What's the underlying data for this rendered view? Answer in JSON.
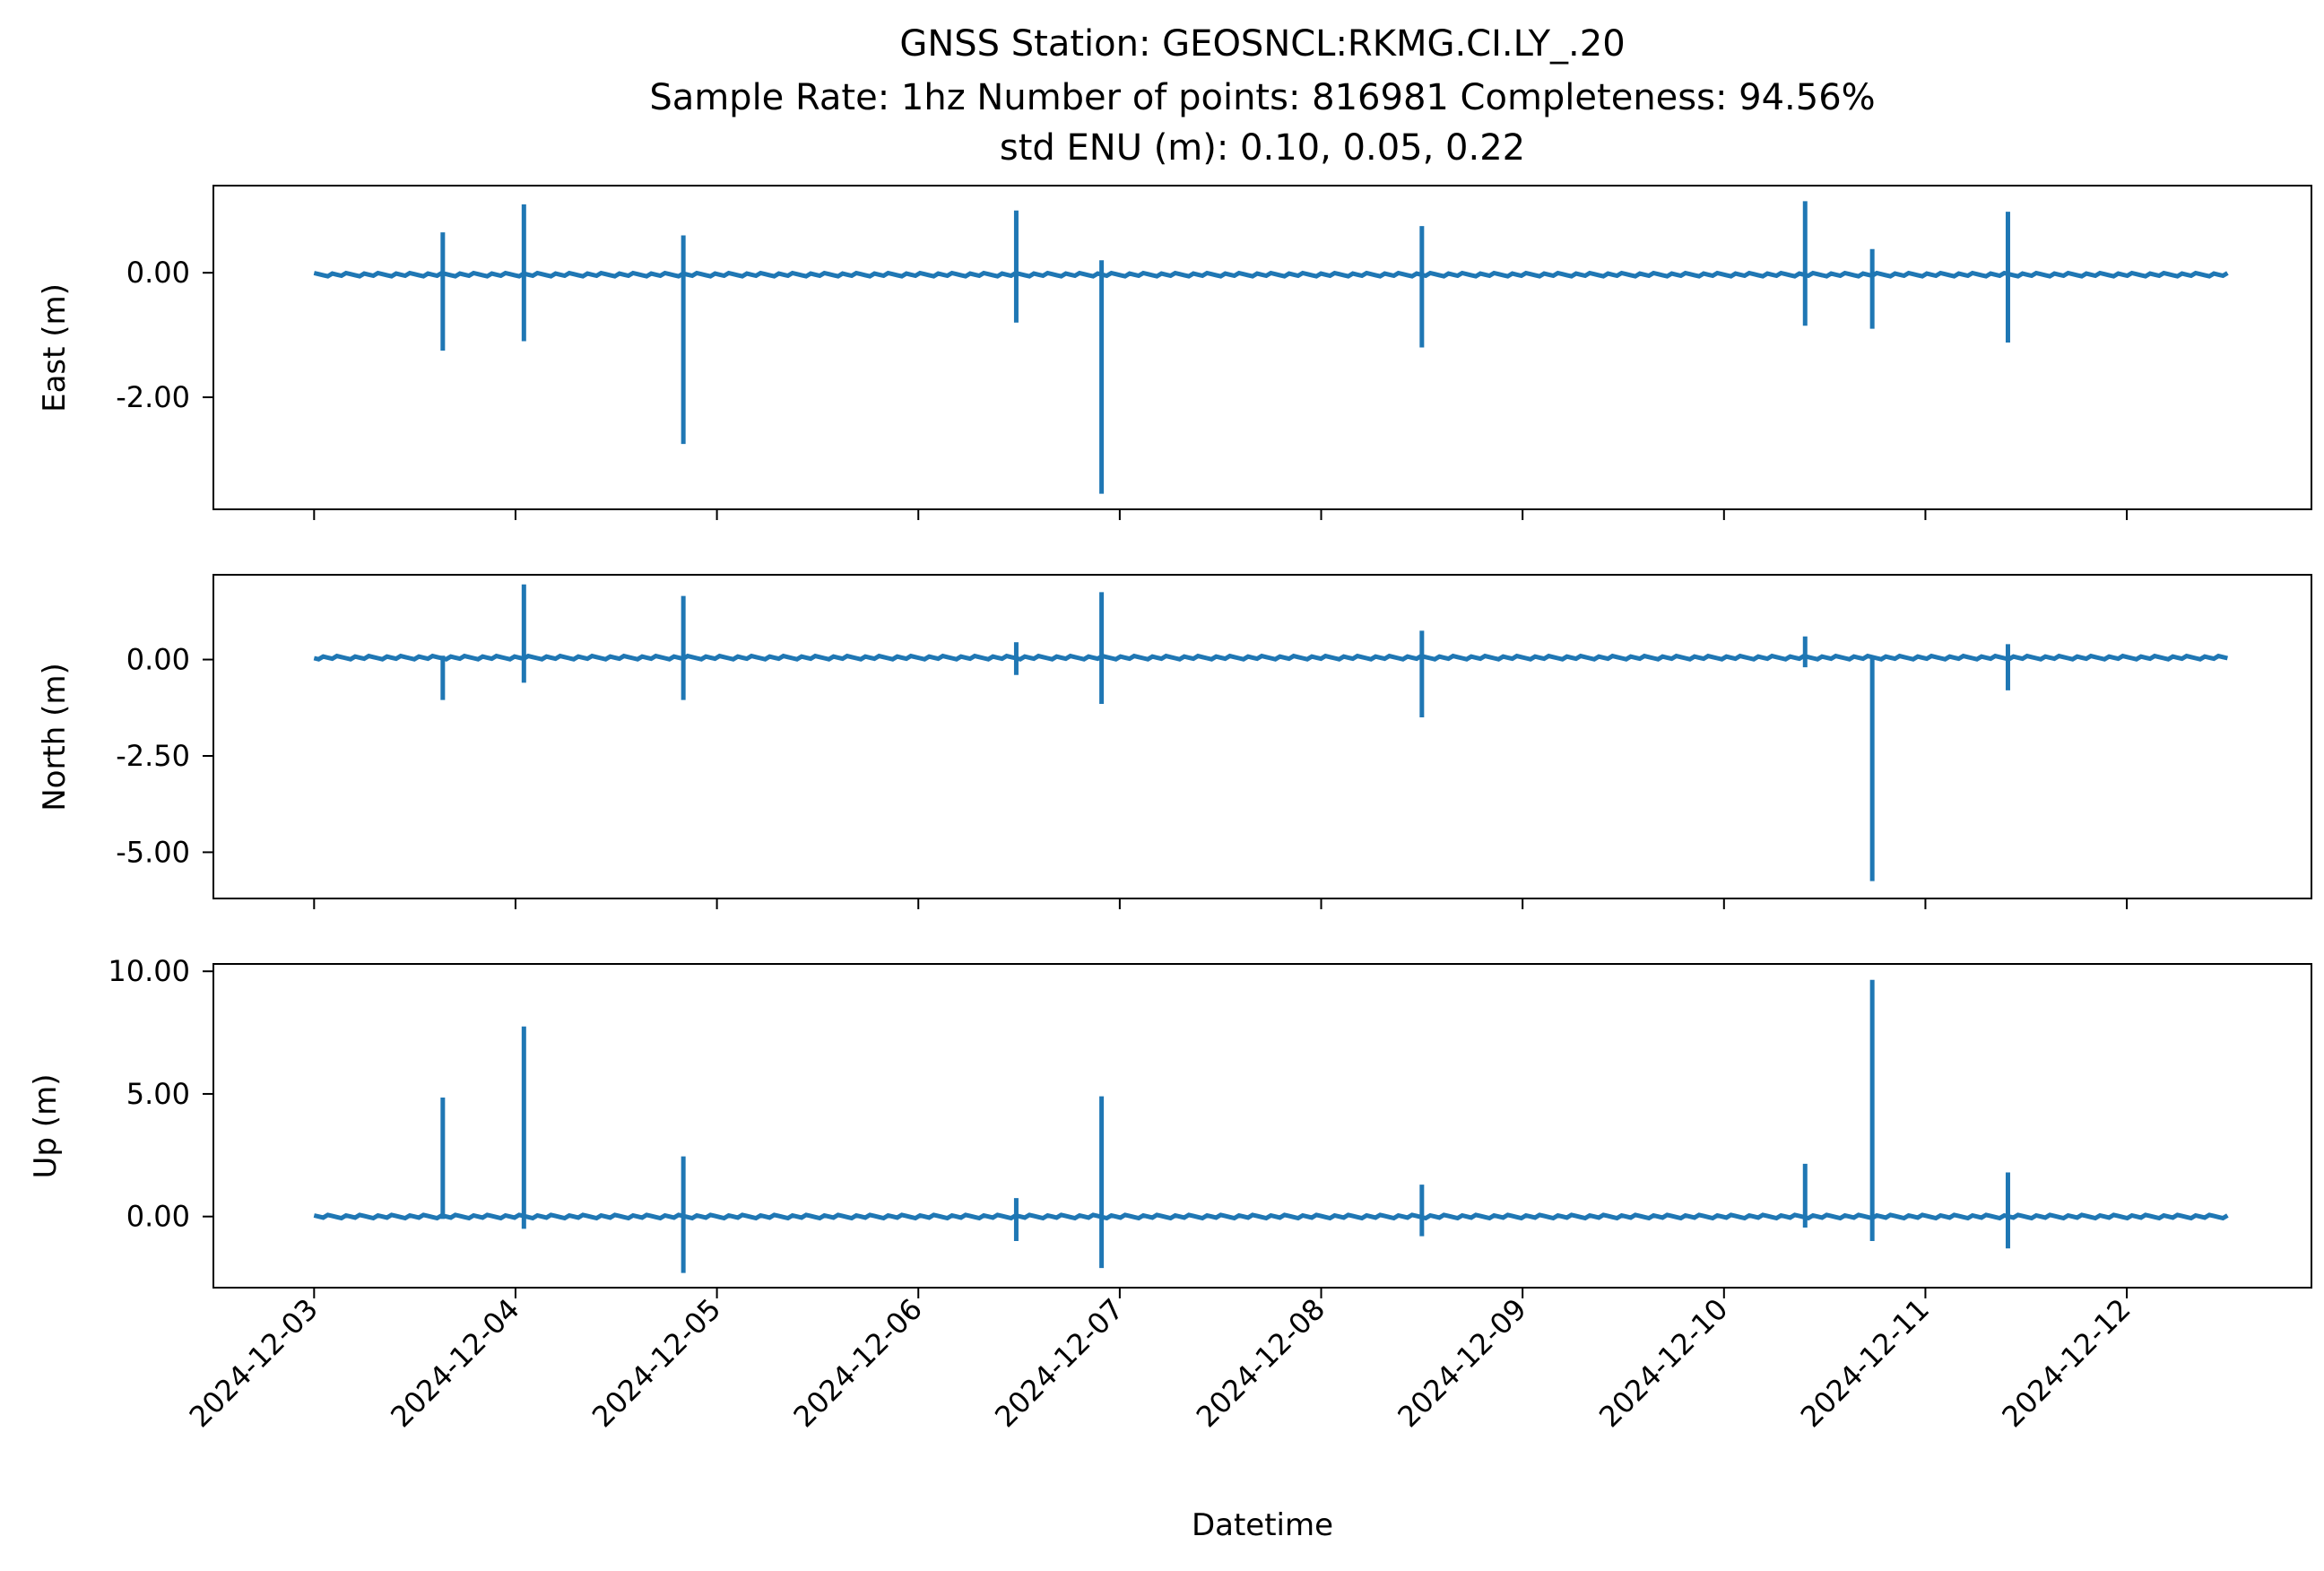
{
  "chart_data": {
    "type": "line",
    "title": "GNSS Station: GEOSNCL:RKMG.CI.LY_.20",
    "subtitle": "Sample Rate: 1hz   Number of points: 816981    Completeness:  94.56%",
    "subtitle2": "std ENU (m):  0.10, 0.05, 0.22",
    "xlabel": "Datetime",
    "x_ticks": [
      "2024-12-03",
      "2024-12-04",
      "2024-12-05",
      "2024-12-06",
      "2024-12-07",
      "2024-12-08",
      "2024-12-09",
      "2024-12-10",
      "2024-12-11",
      "2024-12-12"
    ],
    "x_range": [
      "2024-12-02T12:00",
      "2024-12-12T22:00"
    ],
    "line_color": "#1f77b4",
    "grid": false,
    "panels": [
      {
        "ylabel": "East (m)",
        "ylim": [
          -3.8,
          1.4
        ],
        "yticks": [
          0,
          -2
        ],
        "ytick_labels": [
          "0.00",
          "-2.00"
        ],
        "baseline": -0.03,
        "spikes": [
          {
            "t": "2024-12-03T15:20",
            "max": 0.65,
            "min": -1.25
          },
          {
            "t": "2024-12-04T01:00",
            "max": 1.1,
            "min": -1.1
          },
          {
            "t": "2024-12-04T20:00",
            "max": 0.6,
            "min": -2.75
          },
          {
            "t": "2024-12-06T11:40",
            "max": 1.0,
            "min": -0.8
          },
          {
            "t": "2024-12-06T21:50",
            "max": 0.2,
            "min": -3.55
          },
          {
            "t": "2024-12-08T12:00",
            "max": 0.75,
            "min": -1.2
          },
          {
            "t": "2024-12-10T09:40",
            "max": 1.15,
            "min": -0.85
          },
          {
            "t": "2024-12-10T17:40",
            "max": 0.38,
            "min": -0.9
          },
          {
            "t": "2024-12-11T09:50",
            "max": 0.98,
            "min": -1.12
          }
        ]
      },
      {
        "ylabel": "North (m)",
        "ylim": [
          -6.2,
          2.2
        ],
        "yticks": [
          0,
          -2.5,
          -5
        ],
        "ytick_labels": [
          "0.00",
          "-2.50",
          "-5.00"
        ],
        "baseline": 0.05,
        "spikes": [
          {
            "t": "2024-12-03T15:20",
            "max": 0.1,
            "min": -1.05
          },
          {
            "t": "2024-12-04T01:00",
            "max": 1.95,
            "min": -0.6
          },
          {
            "t": "2024-12-04T20:00",
            "max": 1.65,
            "min": -1.05
          },
          {
            "t": "2024-12-06T11:40",
            "max": 0.45,
            "min": -0.4
          },
          {
            "t": "2024-12-06T21:50",
            "max": 1.75,
            "min": -1.15
          },
          {
            "t": "2024-12-08T12:00",
            "max": 0.75,
            "min": -1.5
          },
          {
            "t": "2024-12-10T09:40",
            "max": 0.6,
            "min": -0.2
          },
          {
            "t": "2024-12-10T17:40",
            "max": 0.05,
            "min": -5.75
          },
          {
            "t": "2024-12-11T09:50",
            "max": 0.4,
            "min": -0.8
          }
        ]
      },
      {
        "ylabel": "Up (m)",
        "ylim": [
          -2.9,
          10.3
        ],
        "yticks": [
          10,
          5,
          0
        ],
        "ytick_labels": [
          "10.00",
          "5.00",
          "0.00"
        ],
        "baseline": 0.0,
        "spikes": [
          {
            "t": "2024-12-03T15:20",
            "max": 4.85,
            "min": -0.1
          },
          {
            "t": "2024-12-04T01:00",
            "max": 7.75,
            "min": -0.5
          },
          {
            "t": "2024-12-04T20:00",
            "max": 2.45,
            "min": -2.3
          },
          {
            "t": "2024-12-06T11:40",
            "max": 0.75,
            "min": -1.0
          },
          {
            "t": "2024-12-06T21:50",
            "max": 4.9,
            "min": -2.1
          },
          {
            "t": "2024-12-08T12:00",
            "max": 1.3,
            "min": -0.8
          },
          {
            "t": "2024-12-10T09:40",
            "max": 2.15,
            "min": -0.45
          },
          {
            "t": "2024-12-10T17:40",
            "max": 9.65,
            "min": -1.0
          },
          {
            "t": "2024-12-11T09:50",
            "max": 1.8,
            "min": -1.3
          }
        ]
      }
    ]
  }
}
